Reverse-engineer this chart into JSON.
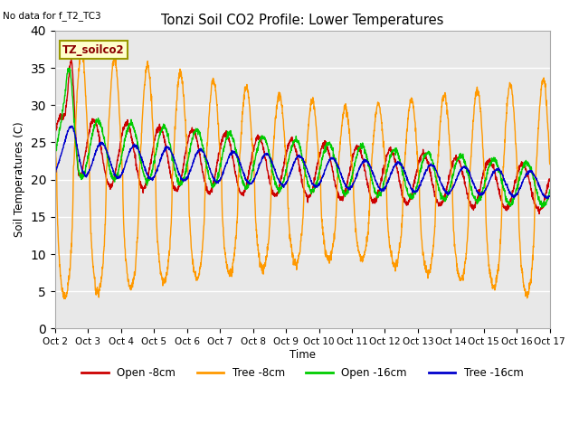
{
  "title": "Tonzi Soil CO2 Profile: Lower Temperatures",
  "subtitle": "No data for f_T2_TC3",
  "ylabel": "Soil Temperatures (C)",
  "xlabel": "Time",
  "legend_label": "TZ_soilco2",
  "ylim": [
    0,
    40
  ],
  "yticks": [
    0,
    5,
    10,
    15,
    20,
    25,
    30,
    35,
    40
  ],
  "xtick_labels": [
    "Oct 2",
    "Oct 3",
    "Oct 4",
    "Oct 5",
    "Oct 6",
    "Oct 7",
    "Oct 8",
    "Oct 9",
    "Oct 10",
    "Oct 11",
    "Oct 12",
    "Oct 13",
    "Oct 14",
    "Oct 15",
    "Oct 16",
    "Oct 17"
  ],
  "colors": {
    "open_8cm": "#cc0000",
    "tree_8cm": "#ff9900",
    "open_16cm": "#00cc00",
    "tree_16cm": "#0000cc"
  },
  "legend_entries": [
    "Open -8cm",
    "Tree -8cm",
    "Open -16cm",
    "Tree -16cm"
  ],
  "bg_color": "#e8e8e8"
}
